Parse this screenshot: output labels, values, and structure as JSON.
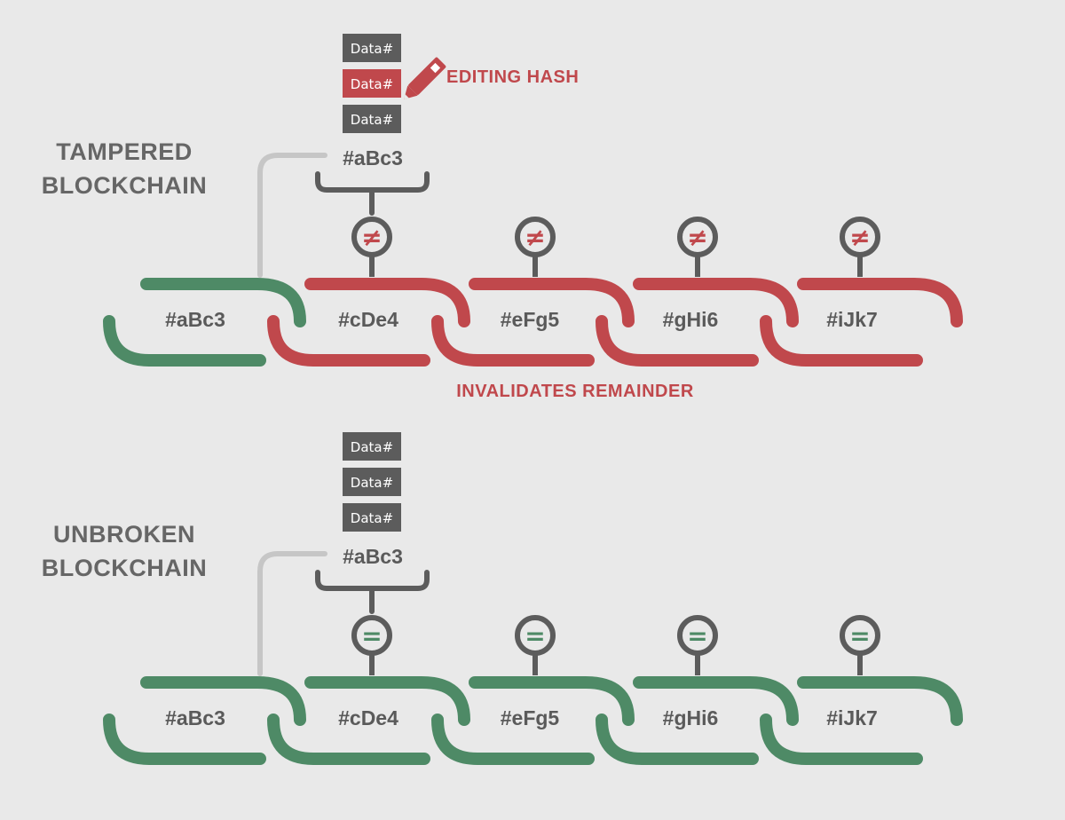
{
  "colors": {
    "background": "#e9e9e9",
    "valid": "#4e8a66",
    "invalid": "#c0484c",
    "neutral": "#5c5c5c",
    "connector": "#c6c6c6",
    "title": "#666666"
  },
  "tampered": {
    "title_line1": "TAMPERED",
    "title_line2": "BLOCKCHAIN",
    "data_labels": [
      "Data#",
      "Data#",
      "Data#"
    ],
    "edited_data_index": 1,
    "edit_label": "EDITING HASH",
    "block_hash": "#aBc3",
    "links": [
      "#aBc3",
      "#cDe4",
      "#eFg5",
      "#gHi6",
      "#iJk7"
    ],
    "comparisons": [
      "≠",
      "≠",
      "≠",
      "≠"
    ],
    "footer": "INVALIDATES REMAINDER"
  },
  "unbroken": {
    "title_line1": "UNBROKEN",
    "title_line2": "BLOCKCHAIN",
    "data_labels": [
      "Data#",
      "Data#",
      "Data#"
    ],
    "block_hash": "#aBc3",
    "links": [
      "#aBc3",
      "#cDe4",
      "#eFg5",
      "#gHi6",
      "#iJk7"
    ],
    "comparisons": [
      "=",
      "=",
      "=",
      "=",
      "="
    ]
  }
}
